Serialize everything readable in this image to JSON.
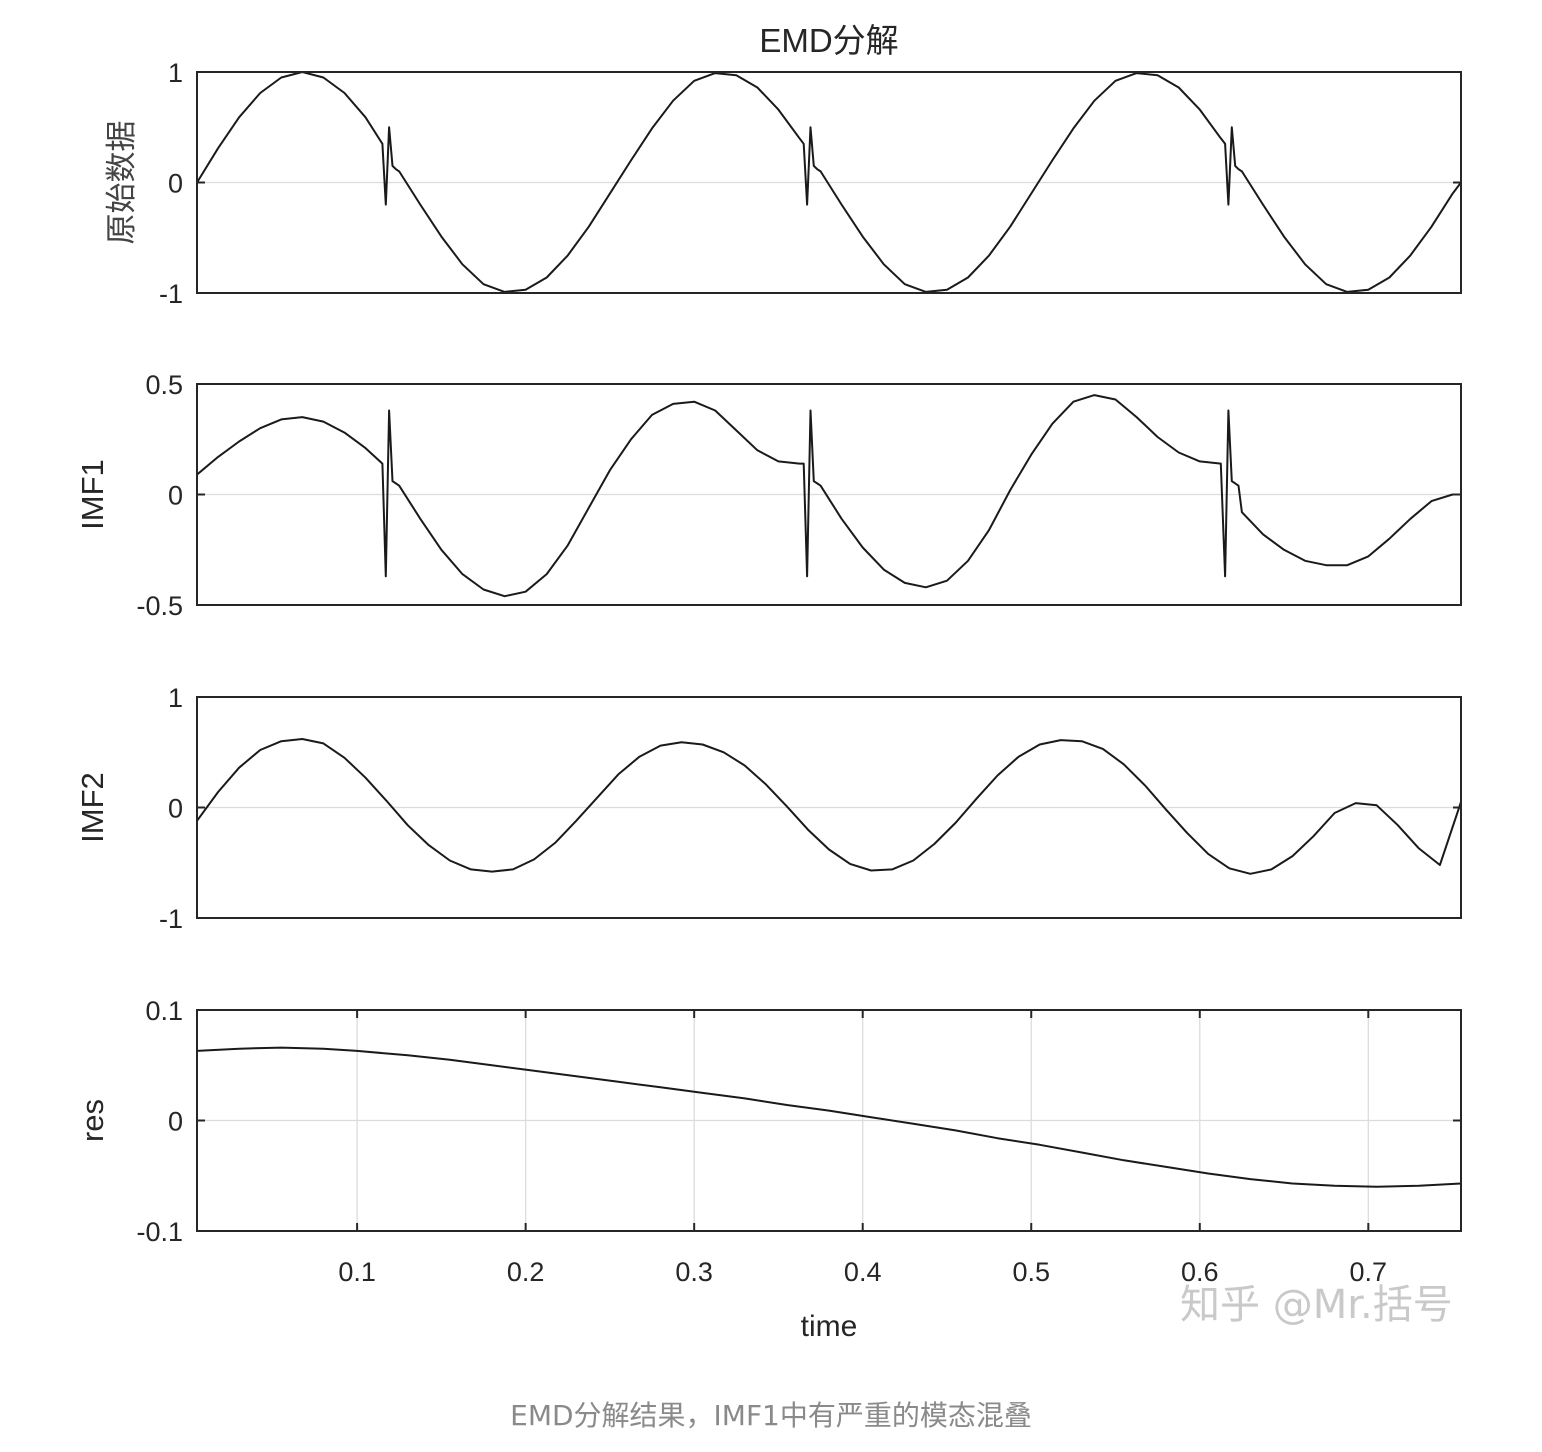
{
  "figure": {
    "title": "EMD分解",
    "xlabel": "time",
    "watermark": "知乎 @Mr.括号",
    "caption": "EMD分解结果，IMF1中有严重的模态混叠"
  },
  "chart_data": [
    {
      "type": "line",
      "panel": "原始数据",
      "ylabel": "原始数据",
      "xlim": [
        0.005,
        0.755
      ],
      "ylim": [
        -1,
        1
      ],
      "yticks": [
        -1,
        0,
        1
      ],
      "ytick_labels": [
        "-1",
        "0",
        "1"
      ],
      "grid": "y=0 only",
      "series": [
        {
          "x": [
            0.005,
            0.0175,
            0.03,
            0.0425,
            0.055,
            0.0675,
            0.08,
            0.0925,
            0.105,
            0.115,
            0.117,
            0.119,
            0.121,
            0.123,
            0.125,
            0.1375,
            0.15,
            0.1625,
            0.175,
            0.1875,
            0.2,
            0.2125,
            0.225,
            0.2375,
            0.25,
            0.2625,
            0.275,
            0.2875,
            0.3,
            0.3125,
            0.325,
            0.3375,
            0.35,
            0.3625,
            0.365,
            0.367,
            0.369,
            0.371,
            0.373,
            0.375,
            0.3875,
            0.4,
            0.4125,
            0.425,
            0.4375,
            0.45,
            0.4625,
            0.475,
            0.4875,
            0.5,
            0.5125,
            0.525,
            0.5375,
            0.55,
            0.5625,
            0.575,
            0.5875,
            0.6,
            0.6125,
            0.615,
            0.617,
            0.619,
            0.621,
            0.623,
            0.625,
            0.6375,
            0.65,
            0.6625,
            0.675,
            0.6875,
            0.7,
            0.7125,
            0.725,
            0.7375,
            0.75,
            0.755
          ],
          "y": [
            0.0,
            0.31,
            0.59,
            0.81,
            0.95,
            1.0,
            0.95,
            0.81,
            0.59,
            0.35,
            -0.2,
            0.5,
            0.15,
            0.12,
            0.1,
            -0.2,
            -0.49,
            -0.74,
            -0.92,
            -0.99,
            -0.97,
            -0.86,
            -0.66,
            -0.4,
            -0.1,
            0.2,
            0.49,
            0.74,
            0.92,
            0.99,
            0.97,
            0.86,
            0.66,
            0.4,
            0.35,
            -0.2,
            0.5,
            0.15,
            0.12,
            0.1,
            -0.2,
            -0.49,
            -0.74,
            -0.92,
            -0.99,
            -0.97,
            -0.86,
            -0.66,
            -0.4,
            -0.1,
            0.2,
            0.49,
            0.74,
            0.92,
            0.99,
            0.97,
            0.86,
            0.66,
            0.4,
            0.35,
            -0.2,
            0.5,
            0.15,
            0.12,
            0.1,
            -0.2,
            -0.49,
            -0.74,
            -0.92,
            -0.99,
            -0.97,
            -0.86,
            -0.66,
            -0.4,
            -0.1,
            0.0
          ]
        }
      ]
    },
    {
      "type": "line",
      "panel": "IMF1",
      "ylabel": "IMF1",
      "xlim": [
        0.005,
        0.755
      ],
      "ylim": [
        -0.5,
        0.5
      ],
      "yticks": [
        -0.5,
        0,
        0.5
      ],
      "ytick_labels": [
        "-0.5",
        "0",
        "0.5"
      ],
      "grid": "y=0 only",
      "series": [
        {
          "x": [
            0.005,
            0.0175,
            0.03,
            0.0425,
            0.055,
            0.0675,
            0.08,
            0.0925,
            0.105,
            0.115,
            0.117,
            0.119,
            0.121,
            0.123,
            0.125,
            0.1375,
            0.15,
            0.1625,
            0.175,
            0.1875,
            0.2,
            0.2125,
            0.225,
            0.2375,
            0.25,
            0.2625,
            0.275,
            0.2875,
            0.3,
            0.3125,
            0.325,
            0.3375,
            0.35,
            0.3625,
            0.365,
            0.367,
            0.369,
            0.371,
            0.373,
            0.375,
            0.3875,
            0.4,
            0.4125,
            0.425,
            0.4375,
            0.45,
            0.4625,
            0.475,
            0.4875,
            0.5,
            0.5125,
            0.525,
            0.5375,
            0.55,
            0.5625,
            0.575,
            0.5875,
            0.6,
            0.6125,
            0.615,
            0.617,
            0.619,
            0.621,
            0.623,
            0.625,
            0.6375,
            0.65,
            0.6625,
            0.675,
            0.6875,
            0.7,
            0.7125,
            0.725,
            0.7375,
            0.75,
            0.755
          ],
          "y": [
            0.09,
            0.17,
            0.24,
            0.3,
            0.34,
            0.35,
            0.33,
            0.28,
            0.21,
            0.14,
            -0.37,
            0.38,
            0.06,
            0.05,
            0.04,
            -0.11,
            -0.25,
            -0.36,
            -0.43,
            -0.46,
            -0.44,
            -0.36,
            -0.23,
            -0.06,
            0.11,
            0.25,
            0.36,
            0.41,
            0.42,
            0.38,
            0.29,
            0.2,
            0.15,
            0.14,
            0.14,
            -0.37,
            0.38,
            0.06,
            0.05,
            0.04,
            -0.11,
            -0.24,
            -0.34,
            -0.4,
            -0.42,
            -0.39,
            -0.3,
            -0.16,
            0.02,
            0.18,
            0.32,
            0.42,
            0.45,
            0.43,
            0.35,
            0.26,
            0.19,
            0.15,
            0.14,
            -0.37,
            0.38,
            0.06,
            0.05,
            0.04,
            -0.08,
            -0.18,
            -0.25,
            -0.3,
            -0.32,
            -0.32,
            -0.28,
            -0.2,
            -0.11,
            -0.03,
            0.0,
            0.0
          ]
        }
      ]
    },
    {
      "type": "line",
      "panel": "IMF2",
      "ylabel": "IMF2",
      "xlim": [
        0.005,
        0.755
      ],
      "ylim": [
        -1,
        1
      ],
      "yticks": [
        -1,
        0,
        1
      ],
      "ytick_labels": [
        "-1",
        "0",
        "1"
      ],
      "grid": "y=0 only",
      "series": [
        {
          "x": [
            0.005,
            0.0175,
            0.03,
            0.0425,
            0.055,
            0.0675,
            0.08,
            0.0925,
            0.105,
            0.1175,
            0.13,
            0.1425,
            0.155,
            0.1675,
            0.18,
            0.1925,
            0.205,
            0.2175,
            0.23,
            0.2425,
            0.255,
            0.2675,
            0.28,
            0.2925,
            0.305,
            0.3175,
            0.33,
            0.3425,
            0.355,
            0.3675,
            0.38,
            0.3925,
            0.405,
            0.4175,
            0.43,
            0.4425,
            0.455,
            0.4675,
            0.48,
            0.4925,
            0.505,
            0.5175,
            0.53,
            0.5425,
            0.555,
            0.5675,
            0.58,
            0.5925,
            0.605,
            0.6175,
            0.63,
            0.6425,
            0.655,
            0.6675,
            0.68,
            0.6925,
            0.705,
            0.7175,
            0.73,
            0.7425,
            0.755
          ],
          "y": [
            -0.12,
            0.14,
            0.36,
            0.52,
            0.6,
            0.62,
            0.58,
            0.45,
            0.27,
            0.06,
            -0.16,
            -0.34,
            -0.48,
            -0.56,
            -0.58,
            -0.56,
            -0.47,
            -0.32,
            -0.12,
            0.09,
            0.3,
            0.46,
            0.56,
            0.59,
            0.57,
            0.5,
            0.38,
            0.21,
            0.01,
            -0.2,
            -0.38,
            -0.51,
            -0.57,
            -0.56,
            -0.48,
            -0.33,
            -0.14,
            0.08,
            0.29,
            0.46,
            0.57,
            0.61,
            0.6,
            0.53,
            0.39,
            0.2,
            -0.02,
            -0.23,
            -0.42,
            -0.55,
            -0.6,
            -0.56,
            -0.44,
            -0.26,
            -0.05,
            0.04,
            0.02,
            -0.16,
            -0.37,
            -0.52,
            0.05
          ]
        }
      ]
    },
    {
      "type": "line",
      "panel": "res",
      "ylabel": "res",
      "xlim": [
        0.005,
        0.755
      ],
      "ylim": [
        -0.1,
        0.1
      ],
      "yticks": [
        -0.1,
        0,
        0.1
      ],
      "ytick_labels": [
        "-0.1",
        "0",
        "0.1"
      ],
      "xticks": [
        0.1,
        0.2,
        0.3,
        0.4,
        0.5,
        0.6,
        0.7
      ],
      "xtick_labels": [
        "0.1",
        "0.2",
        "0.3",
        "0.4",
        "0.5",
        "0.6",
        "0.7"
      ],
      "grid": "on",
      "series": [
        {
          "x": [
            0.005,
            0.03,
            0.055,
            0.08,
            0.1,
            0.13,
            0.155,
            0.18,
            0.205,
            0.23,
            0.255,
            0.28,
            0.305,
            0.33,
            0.355,
            0.38,
            0.405,
            0.43,
            0.455,
            0.48,
            0.505,
            0.53,
            0.555,
            0.58,
            0.605,
            0.63,
            0.655,
            0.68,
            0.705,
            0.73,
            0.755
          ],
          "y": [
            0.063,
            0.065,
            0.066,
            0.065,
            0.063,
            0.059,
            0.055,
            0.05,
            0.045,
            0.04,
            0.035,
            0.03,
            0.025,
            0.02,
            0.014,
            0.009,
            0.003,
            -0.003,
            -0.009,
            -0.016,
            -0.022,
            -0.029,
            -0.036,
            -0.042,
            -0.048,
            -0.053,
            -0.057,
            -0.059,
            -0.06,
            -0.059,
            -0.057
          ]
        }
      ]
    }
  ]
}
